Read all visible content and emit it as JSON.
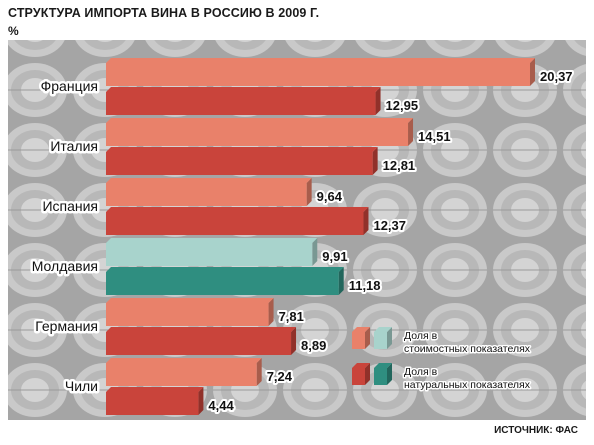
{
  "title": "СТРУКТУРА ИМПОРТА ВИНА В РОССИЮ В 2009 Г.",
  "unit": "%",
  "source": "ИСТОЧНИК: ФАС",
  "colors": {
    "value_default": "#e9816a",
    "volume_default": "#c9443b",
    "value_highlight": "#a8d3cc",
    "volume_highlight": "#2f8e80"
  },
  "chart_data": {
    "type": "bar",
    "orientation": "horizontal",
    "categories": [
      "Франция",
      "Италия",
      "Испания",
      "Молдавия",
      "Германия",
      "Чили"
    ],
    "highlight_category": "Молдавия",
    "series": [
      {
        "name": "Доля в стоимостных показателях",
        "values": [
          20.37,
          14.51,
          9.64,
          9.91,
          7.81,
          7.24
        ]
      },
      {
        "name": "Доля в натуральных показателях",
        "values": [
          12.95,
          12.81,
          12.37,
          11.18,
          8.89,
          4.44
        ]
      }
    ],
    "value_labels": [
      [
        "20,37",
        "14,51",
        "9,64",
        "9,91",
        "7,81",
        "7,24"
      ],
      [
        "12,95",
        "12,81",
        "12,37",
        "11,18",
        "8,89",
        "4,44"
      ]
    ],
    "xlim": [
      0,
      20.37
    ],
    "grid": false,
    "legend_position": "bottom-right"
  }
}
